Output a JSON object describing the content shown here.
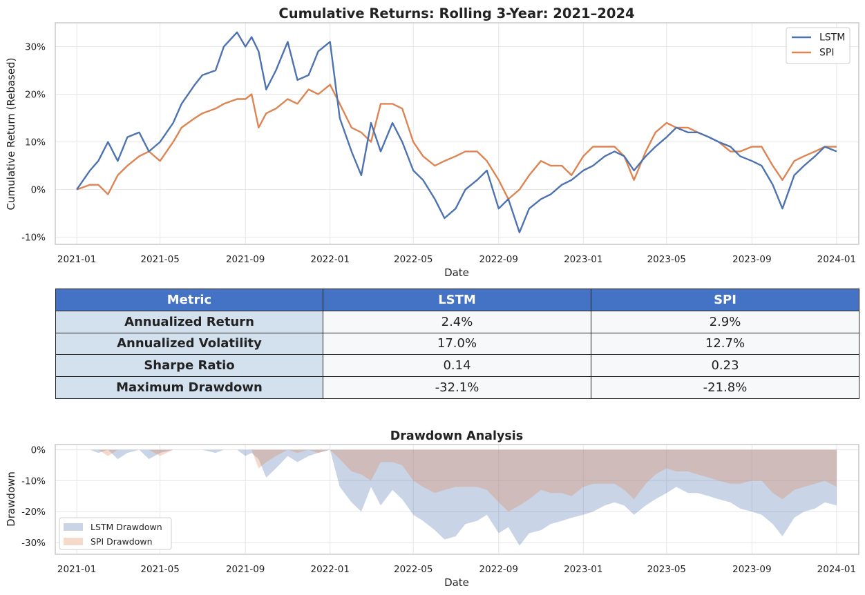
{
  "colors": {
    "lstm": "#4c72b0",
    "spi": "#dd8452",
    "table_header_bg": "#4472c4",
    "table_metric_bg": "#d3e0ee",
    "table_cell_bg": "#f6f8fa"
  },
  "table": {
    "headers": [
      "Metric",
      "LSTM",
      "SPI"
    ],
    "rows": [
      {
        "metric": "Annualized Return",
        "lstm": "2.4%",
        "spi": "2.9%"
      },
      {
        "metric": "Annualized Volatility",
        "lstm": "17.0%",
        "spi": "12.7%"
      },
      {
        "metric": "Sharpe Ratio",
        "lstm": "0.14",
        "spi": "0.23"
      },
      {
        "metric": "Maximum Drawdown",
        "lstm": "-32.1%",
        "spi": "-21.8%"
      }
    ]
  },
  "chart_data": [
    {
      "type": "line",
      "title": "Cumulative Returns: Rolling 3-Year: 2021–2024",
      "xlabel": "Date",
      "ylabel": "Cumulative Return (Rebased)",
      "x_ticks": [
        "2021-01",
        "2021-05",
        "2021-09",
        "2022-01",
        "2022-05",
        "2022-09",
        "2023-01",
        "2023-05",
        "2023-09",
        "2024-01"
      ],
      "y_ticks": [
        -10,
        0,
        10,
        20,
        30
      ],
      "y_tick_labels": [
        "-10%",
        "0%",
        "10%",
        "20%",
        "30%"
      ],
      "ylim": [
        -11.5,
        35
      ],
      "xlim": [
        "2020-12-01",
        "2024-02-02"
      ],
      "grid": true,
      "legend_position": "top-right",
      "x": [
        "2021-01-01",
        "2021-01-20",
        "2021-02-01",
        "2021-02-15",
        "2021-03-01",
        "2021-03-15",
        "2021-04-01",
        "2021-04-15",
        "2021-05-01",
        "2021-05-20",
        "2021-06-01",
        "2021-06-20",
        "2021-07-01",
        "2021-07-20",
        "2021-08-01",
        "2021-08-20",
        "2021-09-01",
        "2021-09-10",
        "2021-09-20",
        "2021-10-01",
        "2021-10-15",
        "2021-11-01",
        "2021-11-15",
        "2021-12-01",
        "2021-12-15",
        "2022-01-01",
        "2022-01-15",
        "2022-02-01",
        "2022-02-15",
        "2022-03-01",
        "2022-03-15",
        "2022-04-01",
        "2022-04-15",
        "2022-05-01",
        "2022-05-15",
        "2022-06-01",
        "2022-06-15",
        "2022-07-01",
        "2022-07-15",
        "2022-08-01",
        "2022-08-15",
        "2022-09-01",
        "2022-09-15",
        "2022-10-01",
        "2022-10-15",
        "2022-11-01",
        "2022-11-15",
        "2022-12-01",
        "2022-12-15",
        "2023-01-01",
        "2023-01-15",
        "2023-02-01",
        "2023-02-15",
        "2023-03-01",
        "2023-03-15",
        "2023-04-01",
        "2023-04-15",
        "2023-05-01",
        "2023-05-15",
        "2023-06-01",
        "2023-06-15",
        "2023-07-01",
        "2023-07-15",
        "2023-08-01",
        "2023-08-15",
        "2023-09-01",
        "2023-09-15",
        "2023-10-01",
        "2023-10-15",
        "2023-11-01",
        "2023-11-15",
        "2023-12-01",
        "2023-12-15",
        "2024-01-01"
      ],
      "series": [
        {
          "name": "LSTM",
          "values": [
            0,
            4,
            6,
            10,
            6,
            11,
            12,
            8,
            10,
            14,
            18,
            22,
            24,
            25,
            30,
            33,
            30,
            32,
            29,
            21,
            25,
            31,
            23,
            24,
            29,
            31,
            15,
            8,
            3,
            14,
            8,
            14,
            10,
            4,
            2,
            -2,
            -6,
            -4,
            0,
            2,
            4,
            -4,
            -2,
            -9,
            -4,
            -2,
            -1,
            1,
            2,
            4,
            5,
            7,
            8,
            7,
            4,
            7,
            9,
            11,
            13,
            12,
            12,
            11,
            10,
            9,
            7,
            6,
            5,
            1,
            -4,
            3,
            5,
            7,
            9,
            8
          ]
        },
        {
          "name": "SPI",
          "values": [
            0,
            1,
            1,
            -1,
            3,
            5,
            7,
            8,
            6,
            10,
            13,
            15,
            16,
            17,
            18,
            19,
            19,
            20,
            13,
            16,
            17,
            19,
            18,
            21,
            20,
            22,
            18,
            13,
            12,
            10,
            18,
            18,
            17,
            10,
            7,
            5,
            6,
            7,
            8,
            8,
            6,
            2,
            -2,
            0,
            3,
            6,
            5,
            5,
            3,
            7,
            9,
            9,
            9,
            7,
            2,
            8,
            12,
            14,
            13,
            13,
            12,
            11,
            10,
            8,
            8,
            9,
            9,
            5,
            2,
            6,
            7,
            8,
            9,
            9
          ]
        }
      ]
    },
    {
      "type": "area",
      "title": "Drawdown Analysis",
      "xlabel": "Date",
      "ylabel": "Drawdown",
      "x_ticks": [
        "2021-01",
        "2021-05",
        "2021-09",
        "2022-01",
        "2022-05",
        "2022-09",
        "2023-01",
        "2023-05",
        "2023-09",
        "2024-01"
      ],
      "y_ticks": [
        0,
        -10,
        -20,
        -30
      ],
      "y_tick_labels": [
        "0%",
        "-10%",
        "-20%",
        "-30%"
      ],
      "ylim": [
        -33.8,
        1.7
      ],
      "xlim": [
        "2020-12-01",
        "2024-02-02"
      ],
      "grid": true,
      "legend_position": "lower-left",
      "x": [
        "2021-01-01",
        "2021-01-20",
        "2021-02-01",
        "2021-02-15",
        "2021-03-01",
        "2021-03-15",
        "2021-04-01",
        "2021-04-15",
        "2021-05-01",
        "2021-05-20",
        "2021-06-01",
        "2021-06-20",
        "2021-07-01",
        "2021-07-20",
        "2021-08-01",
        "2021-08-20",
        "2021-09-01",
        "2021-09-10",
        "2021-09-20",
        "2021-10-01",
        "2021-10-15",
        "2021-11-01",
        "2021-11-15",
        "2021-12-01",
        "2021-12-15",
        "2022-01-01",
        "2022-01-15",
        "2022-02-01",
        "2022-02-15",
        "2022-03-01",
        "2022-03-15",
        "2022-04-01",
        "2022-04-15",
        "2022-05-01",
        "2022-05-15",
        "2022-06-01",
        "2022-06-15",
        "2022-07-01",
        "2022-07-15",
        "2022-08-01",
        "2022-08-15",
        "2022-09-01",
        "2022-09-15",
        "2022-10-01",
        "2022-10-15",
        "2022-11-01",
        "2022-11-15",
        "2022-12-01",
        "2022-12-15",
        "2023-01-01",
        "2023-01-15",
        "2023-02-01",
        "2023-02-15",
        "2023-03-01",
        "2023-03-15",
        "2023-04-01",
        "2023-04-15",
        "2023-05-01",
        "2023-05-15",
        "2023-06-01",
        "2023-06-15",
        "2023-07-01",
        "2023-07-15",
        "2023-08-01",
        "2023-08-15",
        "2023-09-01",
        "2023-09-15",
        "2023-10-01",
        "2023-10-15",
        "2023-11-01",
        "2023-11-15",
        "2023-12-01",
        "2023-12-15",
        "2024-01-01"
      ],
      "series": [
        {
          "name": "LSTM Drawdown",
          "values": [
            0,
            0,
            -1,
            0,
            -3,
            -1,
            0,
            -3,
            -1,
            0,
            0,
            0,
            0,
            -1,
            0,
            0,
            -2,
            -1,
            -3,
            -9,
            -6,
            -2,
            -4,
            -2,
            -1,
            0,
            -12,
            -17,
            -20,
            -12,
            -18,
            -13,
            -16,
            -21,
            -23,
            -26,
            -29,
            -28,
            -24,
            -23,
            -21,
            -27,
            -25,
            -31,
            -27,
            -26,
            -24,
            -23,
            -22,
            -21,
            -20,
            -18,
            -17,
            -18,
            -21,
            -18,
            -16,
            -14,
            -12,
            -14,
            -14,
            -15,
            -16,
            -17,
            -19,
            -20,
            -21,
            -24,
            -28,
            -22,
            -20,
            -19,
            -17,
            -18
          ]
        },
        {
          "name": "SPI Drawdown",
          "values": [
            0,
            0,
            0,
            -2,
            0,
            0,
            0,
            0,
            -2,
            0,
            0,
            0,
            0,
            0,
            0,
            0,
            0,
            0,
            -6,
            -4,
            -2,
            0,
            -1,
            0,
            -1,
            0,
            -3,
            -7,
            -8,
            -10,
            -4,
            -4,
            -5,
            -10,
            -12,
            -14,
            -13,
            -12,
            -12,
            -12,
            -13,
            -17,
            -20,
            -18,
            -16,
            -13,
            -14,
            -14,
            -15,
            -12,
            -11,
            -11,
            -11,
            -13,
            -16,
            -11,
            -8,
            -6,
            -7,
            -7,
            -8,
            -9,
            -10,
            -11,
            -11,
            -10,
            -10,
            -14,
            -16,
            -13,
            -12,
            -11,
            -10,
            -12
          ]
        }
      ]
    }
  ]
}
